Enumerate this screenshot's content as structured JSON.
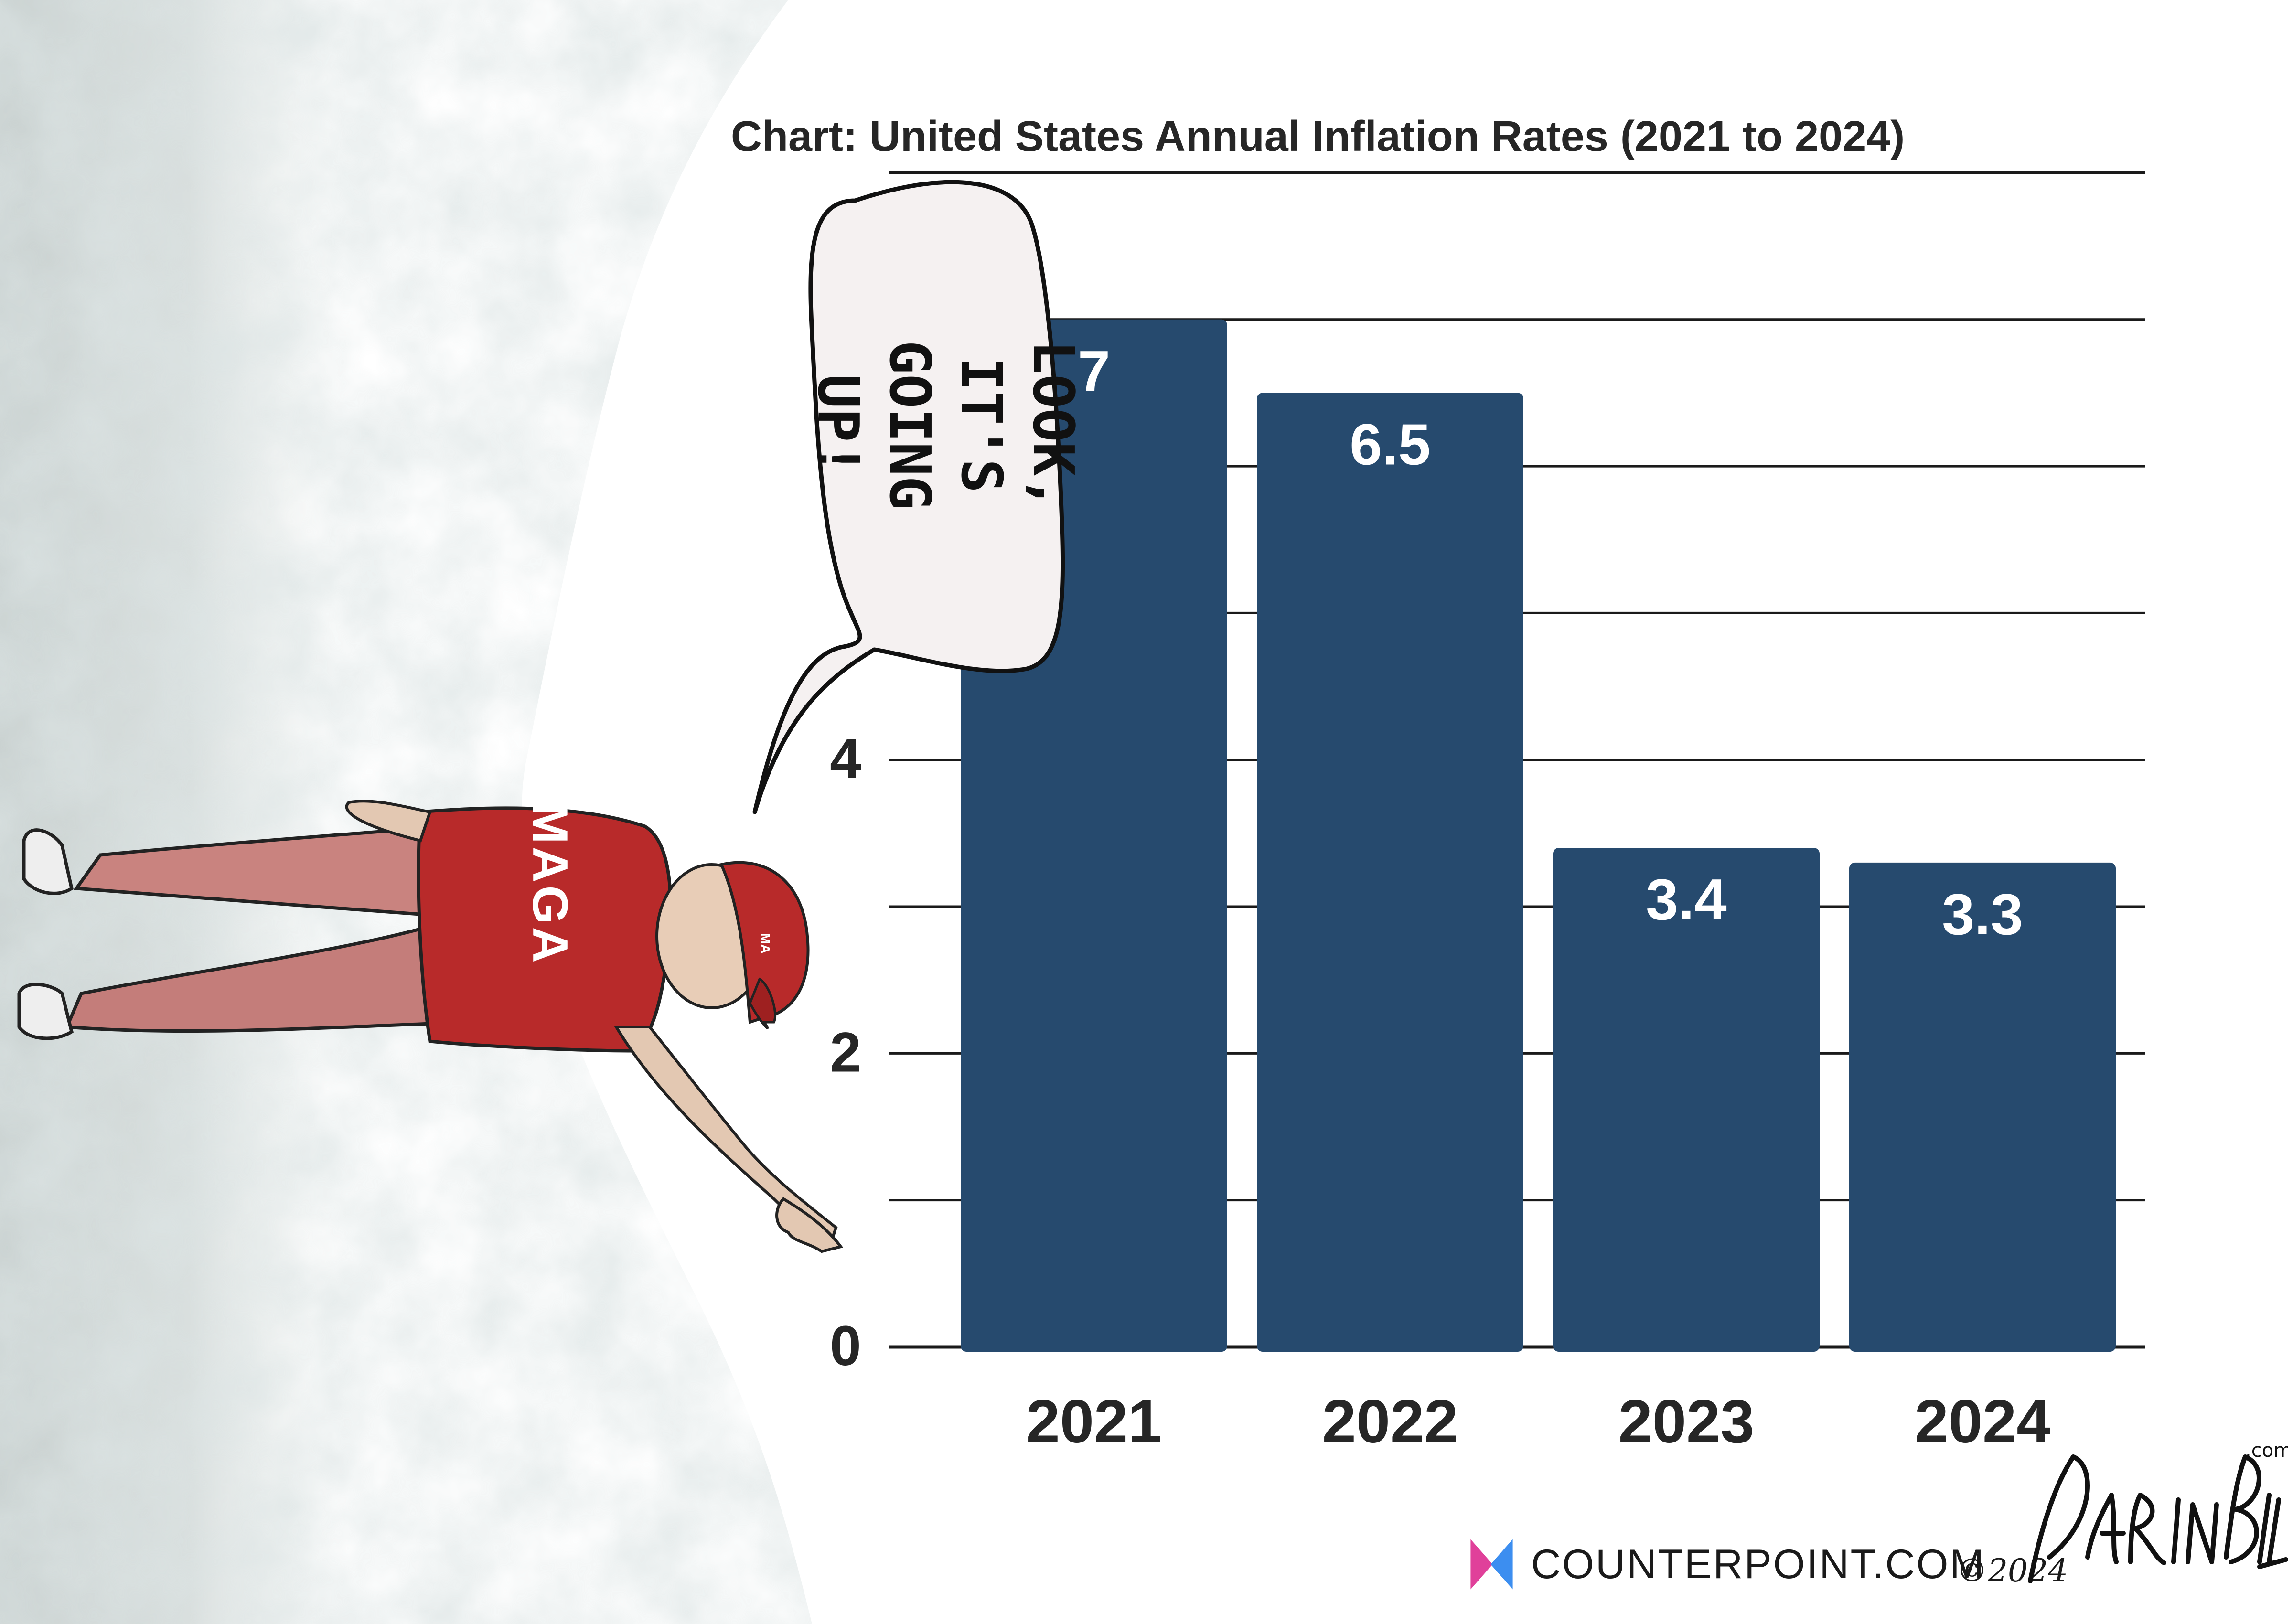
{
  "chart_data": {
    "type": "bar",
    "title": "Chart: United States Annual Inflation Rates (2021 to 2024)",
    "categories": [
      "2021",
      "2022",
      "2023",
      "2024"
    ],
    "values": [
      7,
      6.5,
      3.4,
      3.3
    ],
    "data_labels": [
      "7",
      "6.5",
      "3.4",
      "3.3"
    ],
    "y_ticks": [
      0,
      2,
      4
    ],
    "ylim": [
      0,
      8.2
    ],
    "grid": true,
    "bar_color": "#264a6e"
  },
  "cartoon": {
    "speech_bubble": [
      "LOOK, IT'S",
      "GOING UP!"
    ],
    "shirt_text": "MAGA",
    "cap_text": "MA",
    "shirt_color": "#b82a2a",
    "pants_color": "#c47d7a"
  },
  "footer": {
    "brand_name": "COUNTERPOINT.COM",
    "copyright": "©2024",
    "signature_icon": "darrin-bell-signature",
    "logo_icon": "counterpoint-logo"
  }
}
